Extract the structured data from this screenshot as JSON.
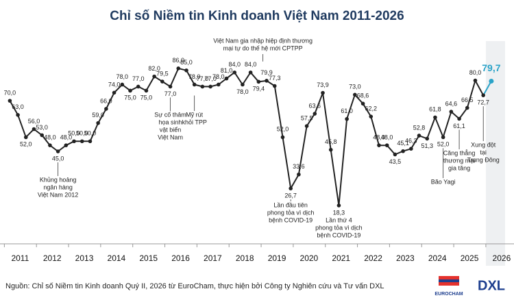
{
  "chart_data": {
    "type": "line",
    "title": "Chỉ số Niềm tin Kinh doanh Việt Nam 2011-2026",
    "x": [
      2011,
      2011.25,
      2011.5,
      2011.75,
      2012,
      2012.25,
      2012.5,
      2012.75,
      2013,
      2013.25,
      2013.5,
      2013.75,
      2014,
      2014.25,
      2014.5,
      2014.75,
      2015,
      2015.25,
      2015.5,
      2015.75,
      2016,
      2016.25,
      2016.5,
      2016.75,
      2017,
      2017.25,
      2017.5,
      2017.75,
      2018,
      2018.25,
      2018.5,
      2018.75,
      2019,
      2019.25,
      2019.5,
      2019.75,
      2020,
      2020.25,
      2020.5,
      2020.75,
      2021,
      2021.25,
      2021.5,
      2021.75,
      2022,
      2022.25,
      2022.5,
      2022.75,
      2023,
      2023.25,
      2023.5,
      2023.75,
      2024,
      2024.25,
      2024.5,
      2024.75,
      2025,
      2025.25,
      2025.5,
      2025.75,
      2026
    ],
    "values": [
      70,
      63,
      52,
      56,
      53,
      48,
      45,
      48,
      50,
      50,
      50,
      59,
      66,
      74,
      78,
      75,
      77,
      75,
      82,
      79.5,
      77,
      86,
      85,
      78,
      77,
      77,
      78,
      81,
      84,
      78,
      84,
      79.4,
      79.9,
      77.3,
      52,
      26.7,
      33.6,
      57.5,
      63.6,
      73.9,
      45.8,
      18.3,
      61,
      73,
      68.6,
      62.2,
      48,
      48,
      43.5,
      45.1,
      46.3,
      52.8,
      51.3,
      61.8,
      52,
      64.6,
      61.1,
      66.5,
      80,
      72.7,
      79.7
    ],
    "value_labels": [
      "70,0",
      "63,0",
      "52,0",
      "56,0",
      "53,0",
      "48,0",
      "45,0",
      "48,0",
      "50,0",
      "50,0",
      "50,0",
      "59,0",
      "66,0",
      "74,0",
      "78,0",
      "75,0",
      "77,0",
      "75,0",
      "82,0",
      "79,5",
      "77,0",
      "86,0",
      "85,0",
      "78,0",
      "77,0",
      "77,0",
      "78,0",
      "81,0",
      "84,0",
      "78,0",
      "84,0",
      "79,4",
      "79,9",
      "77,3",
      "52,0",
      "26,7",
      "33,6",
      "57,5",
      "63,6",
      "73,9",
      "45,8",
      "18,3",
      "61,0",
      "73,0",
      "68,6",
      "62,2",
      "48,0",
      "48,0",
      "43,5",
      "45,1",
      "46,3",
      "52,8",
      "51,3",
      "61,8",
      "52,0",
      "64,6",
      "61,1",
      "66,5",
      "80,0",
      "72,7",
      "79,7"
    ],
    "color": "#222222",
    "highlight_color": "#2aa3c8",
    "xlim": [
      2010.8,
      2026.6
    ],
    "ylim": [
      10,
      90
    ],
    "xticks": [
      2011,
      2012,
      2013,
      2014,
      2015,
      2016,
      2017,
      2018,
      2019,
      2020,
      2021,
      2022,
      2023,
      2024,
      2025,
      2026
    ],
    "annotations": [
      {
        "lines": [
          "Khủng hoảng",
          "ngân hàng",
          "Việt Nam 2012"
        ]
      },
      {
        "lines": [
          "Sự cố thảm",
          "họa sinh",
          "vật biển",
          "Việt Nam"
        ]
      },
      {
        "lines": [
          "Mỹ rút",
          "khỏi TPP"
        ]
      },
      {
        "lines": [
          "Việt Nam gia nhập hiệp định thương",
          "mại tự do thế hệ mới CPTPP"
        ]
      },
      {
        "lines": [
          "Lần đầu tiên",
          "phong tỏa vì dịch",
          "bệnh COVID-19"
        ]
      },
      {
        "lines": [
          "Lần thứ 4",
          "phong tỏa vì dịch",
          "bệnh COVID-19"
        ]
      },
      {
        "lines": [
          "Bão Yagi"
        ]
      },
      {
        "lines": [
          "Căng thẳng",
          "thương mại",
          "gia tăng"
        ]
      },
      {
        "lines": [
          "Xung đột",
          "tại",
          "Trung Đông"
        ]
      }
    ]
  },
  "footer": {
    "source": "Nguồn: Chỉ số Niềm tin Kinh doanh Quý II, 2026 từ EuroCham, thực hiện bởi Công ty Nghiên cứu và Tư vấn DXL",
    "logo_left": "EUROCHAM",
    "logo_right": "DXL"
  }
}
